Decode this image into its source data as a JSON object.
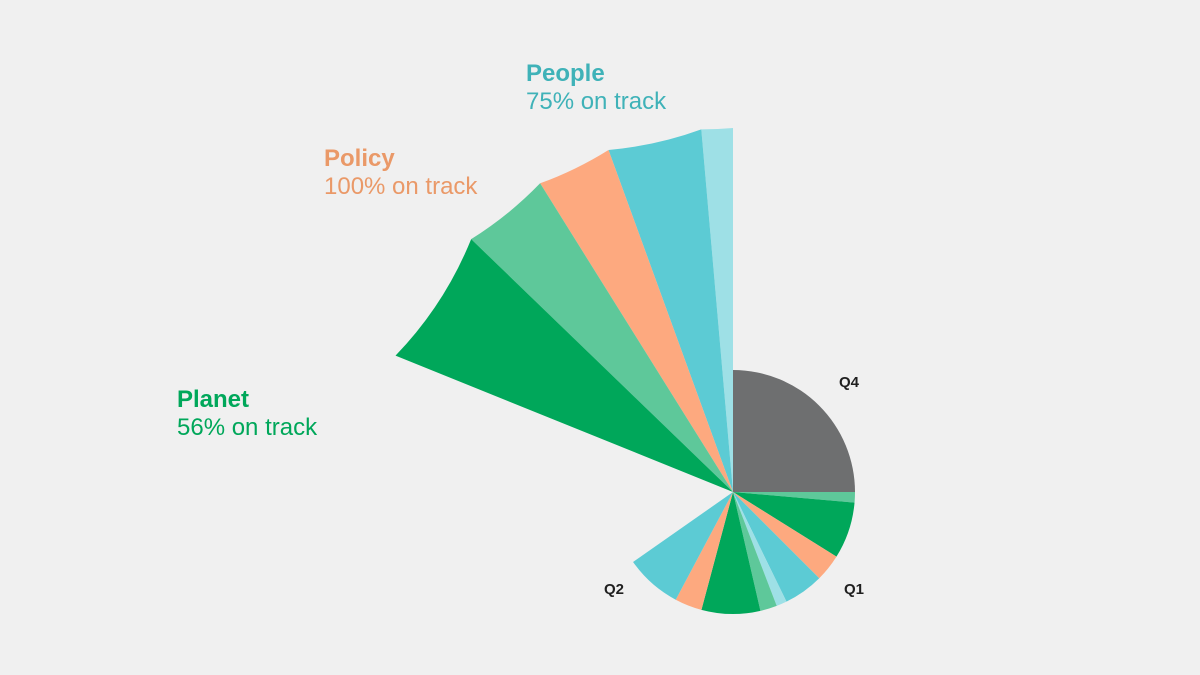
{
  "colors": {
    "background": "#f0f0f0",
    "people_light": "#9ee0e6",
    "people": "#5ccbd4",
    "policy": "#fda97f",
    "planet_light": "#5ec89a",
    "planet": "#00a75a",
    "q4": "#6e6f70"
  },
  "chart_data": {
    "type": "pie",
    "categories": [
      {
        "name": "People",
        "status": "75% on track",
        "color": "#3fb2b8"
      },
      {
        "name": "Policy",
        "status": "100% on track",
        "color": "#ea9968"
      },
      {
        "name": "Planet",
        "status": "56% on track",
        "color": "#00a75a"
      }
    ],
    "large_pie": {
      "slices": [
        {
          "value": 5,
          "color": "#9ee0e6"
        },
        {
          "value": 15,
          "color": "#5ccbd4"
        },
        {
          "value": 12,
          "color": "#fda97f"
        },
        {
          "value": 14,
          "color": "#5ec89a"
        },
        {
          "value": 22,
          "color": "#00a75a"
        }
      ]
    },
    "quarter_labels": [
      "Q4",
      "Q1",
      "Q2"
    ],
    "small_pie": {
      "slices": [
        {
          "value": 90,
          "color": "#6e6f70"
        },
        {
          "value": 5,
          "color": "#5ec89a"
        },
        {
          "value": 27,
          "color": "#00a75a"
        },
        {
          "value": 13,
          "color": "#fda97f"
        },
        {
          "value": 19,
          "color": "#5ccbd4"
        },
        {
          "value": 5,
          "color": "#9ee0e6"
        },
        {
          "value": 8,
          "color": "#5ec89a"
        },
        {
          "value": 28,
          "color": "#00a75a"
        },
        {
          "value": 13,
          "color": "#fda97f"
        },
        {
          "value": 27,
          "color": "#5ccbd4"
        }
      ]
    }
  }
}
